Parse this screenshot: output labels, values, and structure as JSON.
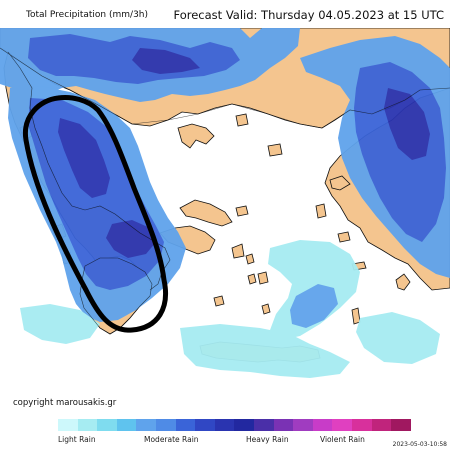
{
  "header": {
    "title": "Total Precipitation (mm/3h)",
    "forecast_valid": "Forecast Valid:   Thursday 04.05.2023 at 15 UTC"
  },
  "map": {
    "colors": {
      "sea": "#ffffff",
      "land": "#f4c58f",
      "rain_light": "#a6ecf2",
      "rain_mid": "#5fa3ec",
      "rain_mod": "#3a64d8",
      "rain_heavy": "#2a34b0",
      "highlight_outline": "#000000"
    }
  },
  "footer": {
    "copyright": "copyright marousakis.gr",
    "timestamp": "2023-05-03-10:58"
  },
  "legend": {
    "colors": [
      "#cdf8fb",
      "#a6ecf2",
      "#7fdcef",
      "#5fc3ee",
      "#5fa3ec",
      "#4f8be6",
      "#3a64d8",
      "#3047c4",
      "#2a34b0",
      "#2228a0",
      "#4a2fa8",
      "#7a32b4",
      "#a03cc0",
      "#c83cc8",
      "#e040c0",
      "#d8309c",
      "#c0247c",
      "#a01860"
    ],
    "labels": [
      "Light Rain",
      "Moderate Rain",
      "Heavy Rain",
      "Violent Rain"
    ]
  }
}
